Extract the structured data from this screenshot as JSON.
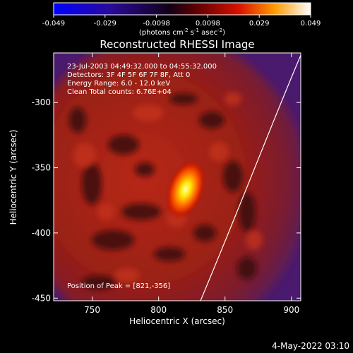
{
  "colorbar": {
    "ticks": [
      "-0.049",
      "-0.029",
      "-0.0098",
      "0.0098",
      "0.029",
      "0.049"
    ],
    "units_prefix": "(photons cm",
    "units_sup1": "-2",
    "units_mid": " s",
    "units_sup2": "-1",
    "units_suffix": " asec",
    "units_sup3": "-2",
    "units_close": ")",
    "colors": [
      "#0000ff",
      "#3a0078",
      "#000000",
      "#b40000",
      "#ff7800",
      "#ffffff"
    ]
  },
  "title": "Reconstructed RHESSI Image",
  "annotations": {
    "time_range": "23-Jul-2003 04:49:32.000 to 04:55:32.000",
    "detectors": "Detectors: 3F 4F 5F 6F 7F 8F, Att 0",
    "energy": "Energy Range: 6.0 - 12.0 keV",
    "clean": "Clean     Total counts: 6.76E+04",
    "peak": "Position of Peak = [821,-356]"
  },
  "x_axis": {
    "label": "Heliocentric X (arcsec)",
    "ticks": [
      "750",
      "800",
      "850",
      "900"
    ],
    "range": [
      721,
      907
    ]
  },
  "y_axis": {
    "label": "Heliocentric Y (arcsec)",
    "ticks": [
      "-300",
      "-350",
      "-400",
      "-450"
    ],
    "range": [
      -452,
      -262
    ]
  },
  "footer_date": "4-May-2022 03:10",
  "image": {
    "peak_x": 821,
    "peak_y": -356,
    "background_color": "#4a1a6e",
    "limb_color": "#ffffff"
  }
}
